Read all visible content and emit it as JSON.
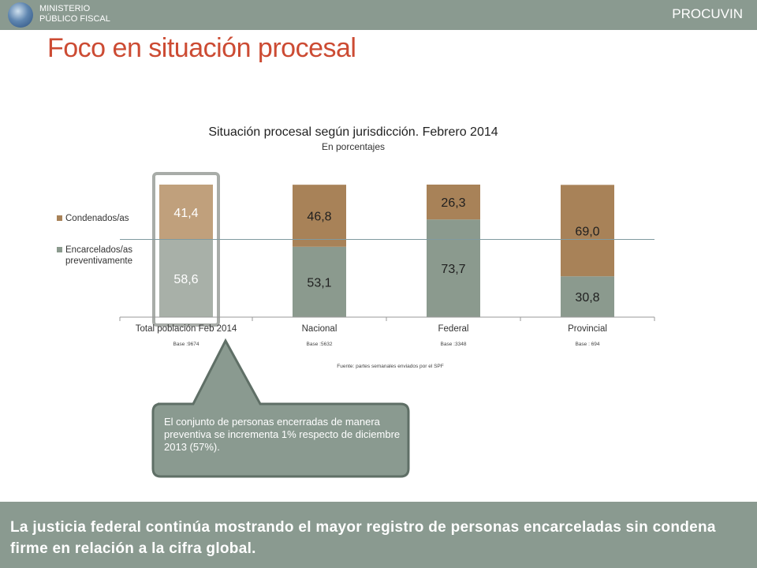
{
  "header": {
    "logo_line1": "MINISTERIO",
    "logo_line2": "PÚBLICO FISCAL",
    "brand": "PROCUVIN"
  },
  "page_title": "Foco en situación procesal",
  "chart_data": {
    "type": "bar",
    "stacked": true,
    "normalized": true,
    "title": "Situación procesal según jurisdicción. Febrero 2014",
    "subtitle": "En porcentajes",
    "categories": [
      "Total población Feb 2014",
      "Nacional",
      "Federal",
      "Provincial"
    ],
    "bases": [
      "Base :9674",
      "Base :5632",
      "Base :3348",
      "Base : 694"
    ],
    "series": [
      {
        "name": "Encarcelados/as preventivamente",
        "values": [
          58.6,
          53.1,
          73.7,
          30.8
        ],
        "labels": [
          "58,6",
          "53,1",
          "73,7",
          "30,8"
        ]
      },
      {
        "name": "Condenados/as",
        "values": [
          41.4,
          46.8,
          26.3,
          69.0
        ],
        "labels": [
          "41,4",
          "46,8",
          "26,3",
          "69,0"
        ]
      }
    ],
    "legend": [
      "Condenados/as",
      "Encarcelados/as preventivamente"
    ],
    "legend_position": "left",
    "reference_line": 58.6,
    "highlighted_category": "Total población Feb 2014",
    "source": "Fuente: partes semanales enviados por el SPF",
    "ylim": [
      0,
      100
    ]
  },
  "colors": {
    "preventivos_total": "#a8b0a8",
    "preventivos": "#8b9a8e",
    "condenados_total": "#c0a07c",
    "condenados": "#a88258",
    "brand_red": "#cc4b33",
    "bar_gray": "#8a9a90"
  },
  "callout": {
    "text": "El conjunto de personas  encerradas de manera preventiva se incrementa 1% respecto de diciembre 2013 (57%)."
  },
  "footer": {
    "text": "La justicia federal continúa mostrando el mayor registro de personas encarceladas sin condena firme en relación a la cifra global."
  }
}
